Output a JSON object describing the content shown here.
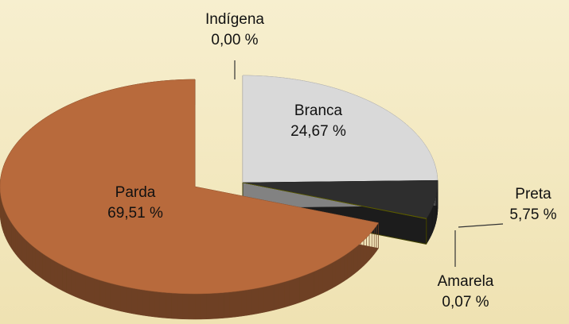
{
  "chart_data": {
    "type": "pie3d",
    "categories": [
      "Indígena",
      "Branca",
      "Preta",
      "Amarela",
      "Parda"
    ],
    "values": [
      0.0,
      24.67,
      5.75,
      0.07,
      69.51
    ],
    "value_labels": [
      "0,00 %",
      "24,67 %",
      "5,75 %",
      "0,07 %",
      "69,51 %"
    ],
    "colors": [
      "#c8c8c8",
      "#d9d9d9",
      "#2e2e2e",
      "#6b6b00",
      "#b86a3c"
    ]
  }
}
